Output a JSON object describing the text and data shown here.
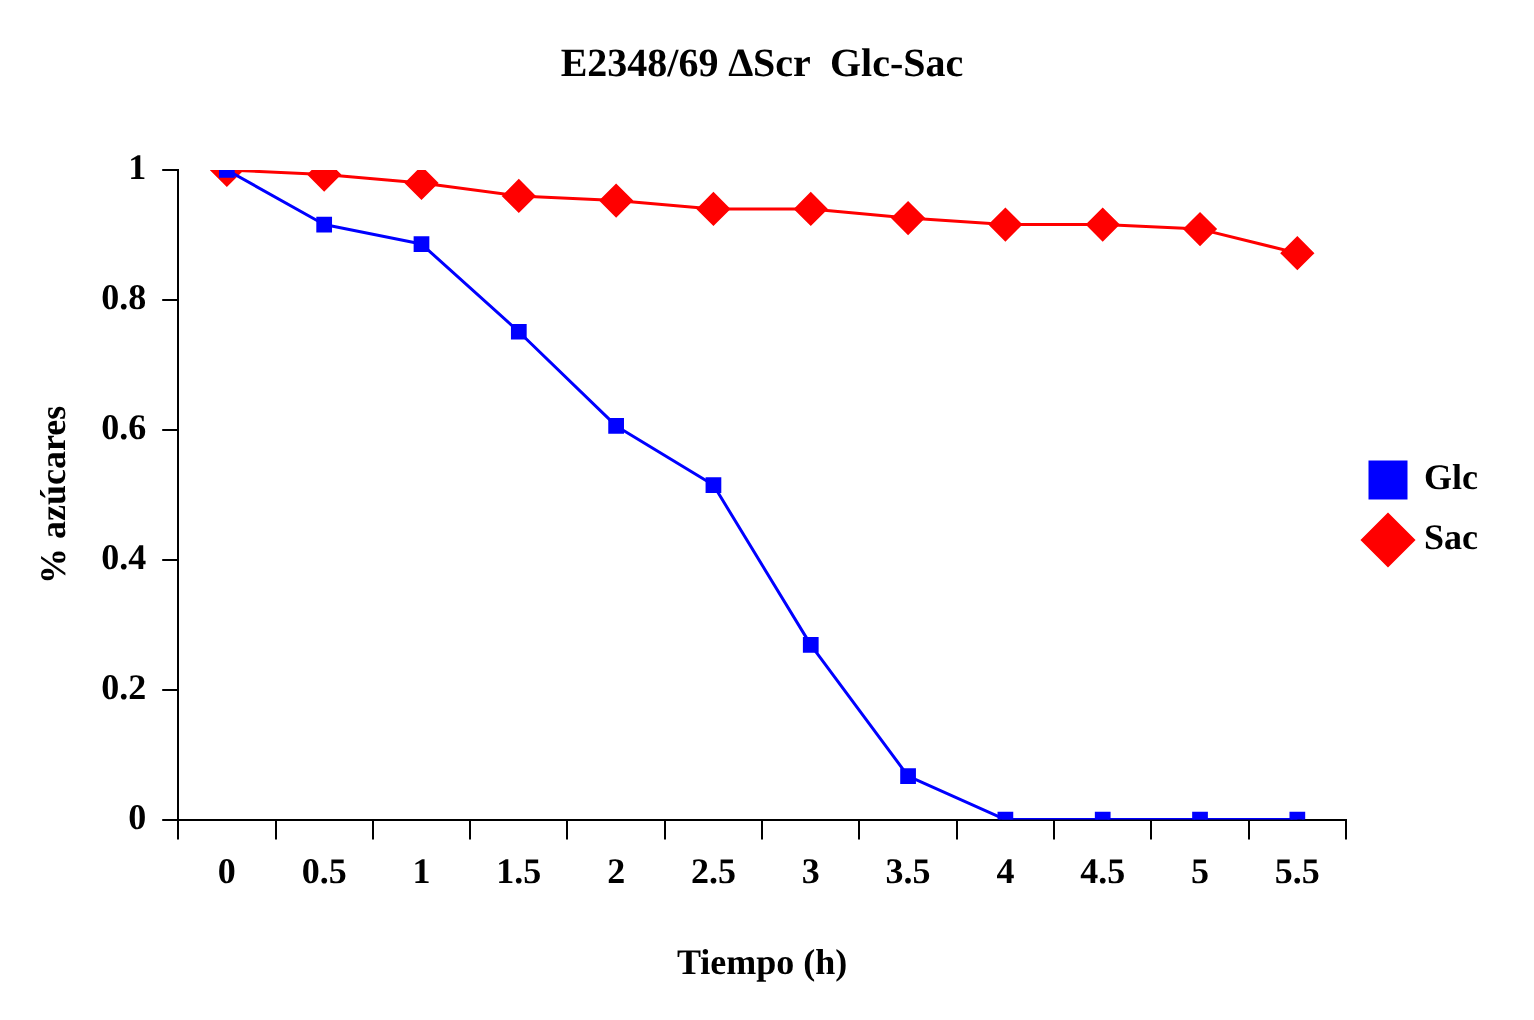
{
  "chart_data": {
    "type": "line",
    "title": "E2348/69 ∆Scr  Glc-Sac",
    "xlabel": "Tiempo (h)",
    "ylabel": "% azúcares",
    "categories": [
      "0",
      "0.5",
      "1",
      "1.5",
      "2",
      "2.5",
      "3",
      "3.5",
      "4",
      "4.5",
      "5",
      "5.5"
    ],
    "series": [
      {
        "name": "Glc",
        "color": "#0000ff",
        "marker": "square",
        "values": [
          1,
          0.916,
          0.886,
          0.751,
          0.606,
          0.515,
          0.269,
          0.067,
          0,
          0,
          0,
          0
        ]
      },
      {
        "name": "Sac",
        "color": "#ff0000",
        "marker": "diamond",
        "values": [
          1,
          0.993,
          0.98,
          0.96,
          0.953,
          0.94,
          0.94,
          0.926,
          0.916,
          0.916,
          0.909,
          0.872
        ]
      }
    ],
    "ylim": [
      0,
      1
    ],
    "yticks": [
      0,
      0.2,
      0.4,
      0.6,
      0.8,
      1
    ],
    "grid": false,
    "legend": "right",
    "line_style": "solid"
  }
}
